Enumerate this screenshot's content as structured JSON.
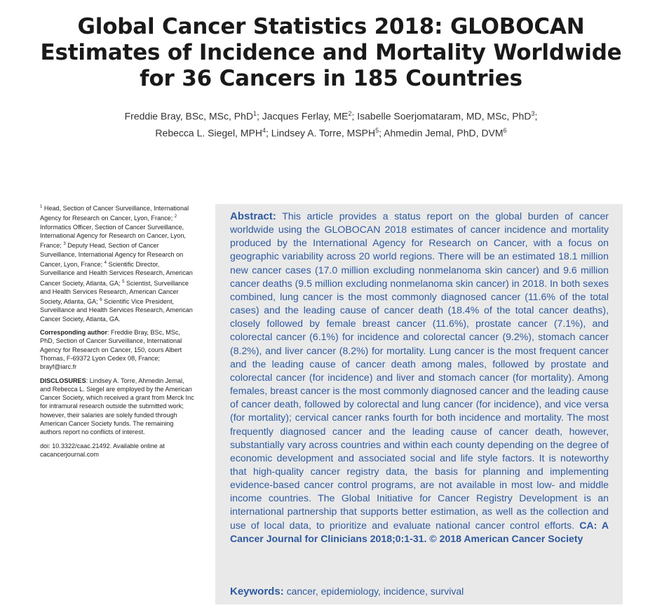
{
  "title": "Global Cancer Statistics 2018: GLOBOCAN Estimates of Incidence and Mortality Worldwide for 36 Cancers in 185 Countries",
  "authors": {
    "line1": [
      {
        "name": "Freddie Bray, BSc, MSc, PhD",
        "sup": "1",
        "sep": "; "
      },
      {
        "name": "Jacques Ferlay, ME",
        "sup": "2",
        "sep": "; "
      },
      {
        "name": "Isabelle Soerjomataram, MD, MSc, PhD",
        "sup": "3",
        "sep": ";"
      }
    ],
    "line2": [
      {
        "name": "Rebecca L. Siegel, MPH",
        "sup": "4",
        "sep": "; "
      },
      {
        "name": "Lindsey A. Torre, MSPH",
        "sup": "5",
        "sep": "; "
      },
      {
        "name": "Ahmedin Jemal, PhD, DVM",
        "sup": "6",
        "sep": ""
      }
    ]
  },
  "affiliations": [
    {
      "sup": "1",
      "text": " Head, Section of Cancer Surveillance, International Agency for Research on Cancer, Lyon, France; "
    },
    {
      "sup": "2",
      "text": " Informatics Officer, Section of Cancer Surveillance, International Agency for Research on Cancer, Lyon, France; "
    },
    {
      "sup": "3",
      "text": " Deputy Head, Section of Cancer Surveillance, International Agency for Research on Cancer, Lyon, France; "
    },
    {
      "sup": "4",
      "text": " Scientific Director, Surveillance and Health Services Research, American Cancer Society, Atlanta, GA; "
    },
    {
      "sup": "5",
      "text": " Scientist, Surveillance and Health Services Research, American Cancer Society, Atlanta, GA; "
    },
    {
      "sup": "6",
      "text": " Scientific Vice President, Surveillance and Health Services Research, American Cancer Society, Atlanta, GA."
    }
  ],
  "corresponding": {
    "label": "Corresponding author",
    "text": ": Freddie Bray, BSc, MSc, PhD, Section of Cancer Surveillance, International Agency for Research on Cancer, 150, cours Albert Thomas, F-69372 Lyon Cedex 08, France; brayf@iarc.fr"
  },
  "disclosures": {
    "label": "DISCLOSURES",
    "text": ": Lindsey A. Torre, Ahmedin Jemal, and Rebecca L. Siegel are employed by the American Cancer Society, which received a grant from Merck Inc for intramural research outside the submitted work; however, their salaries are solely funded through American Cancer Society funds. The remaining authors report no conflicts of interest."
  },
  "doi": "doi: 10.3322/caac.21492. Available online at cacancerjournal.com",
  "abstract": {
    "label": "Abstract:",
    "text": " This article provides a status report on the global burden of cancer worldwide using the GLOBOCAN 2018 estimates of cancer incidence and mortality produced by the International Agency for Research on Cancer, with a focus on geographic variability across 20 world regions. There will be an estimated 18.1 million new cancer cases (17.0 million excluding nonmelanoma skin cancer) and 9.6 million cancer deaths (9.5 million excluding nonmelanoma skin cancer) in 2018. In both sexes combined, lung cancer is the most commonly diagnosed cancer (11.6% of the total cases) and the leading cause of cancer death (18.4% of the total cancer deaths), closely followed by female breast cancer (11.6%), prostate cancer (7.1%), and colorectal cancer (6.1%) for incidence and colorectal cancer (9.2%), stomach cancer (8.2%), and liver cancer (8.2%) for mortality. Lung cancer is the most frequent cancer and the leading cause of cancer death among males, followed by prostate and colorectal cancer (for incidence) and liver and stomach cancer (for mortality). Among females, breast cancer is the most commonly diagnosed cancer and the leading cause of cancer death, followed by colorectal and lung cancer (for incidence), and vice versa (for mortality); cervical cancer ranks fourth for both incidence and mortality. The most frequently diagnosed cancer and the leading cause of cancer death, however, substantially vary across countries and within each county depending on the degree of economic development and associated social and life style factors. It is noteworthy that high-quality cancer registry data, the basis for planning and implementing evidence-based cancer control programs, are not available in most low- and middle income countries. The Global Initiative for Cancer Registry Development is an international partnership that supports better estimation, as well as the collection and use of local data, to prioritize and evaluate national cancer control efforts.",
    "citation": " CA: A Cancer Journal for Clinicians 2018;0:1-31. © 2018 American Cancer Society"
  },
  "keywords": {
    "label": "Keywords:",
    "text": " cancer, epidemiology, incidence, survival"
  }
}
